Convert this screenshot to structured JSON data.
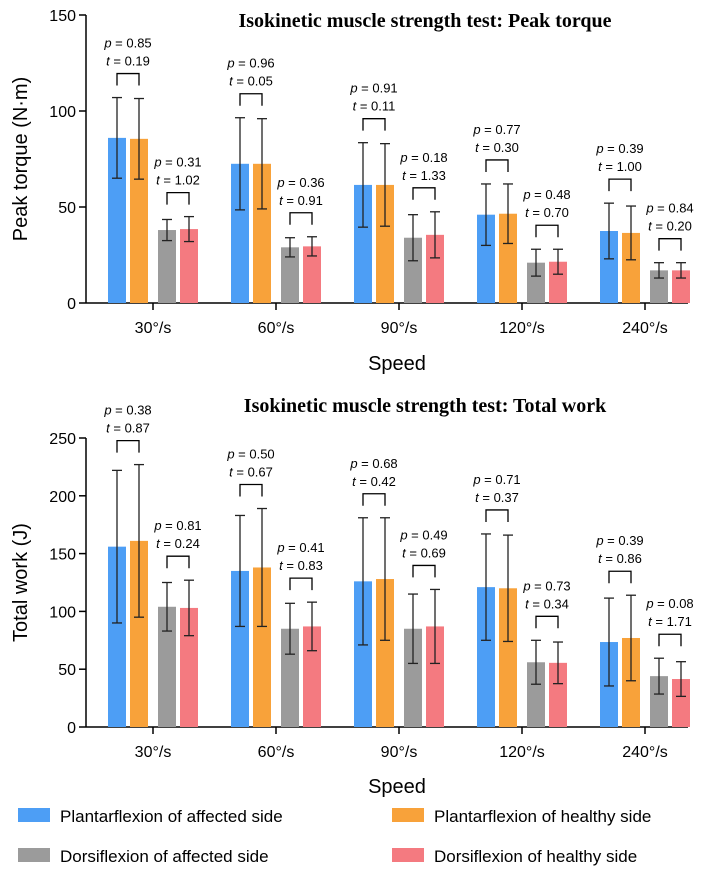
{
  "colors": {
    "plantar_affected": "#4d9ef5",
    "plantar_healthy": "#f8a23a",
    "dorsi_affected": "#9b9b9b",
    "dorsi_healthy": "#f47a80",
    "axis": "#000000"
  },
  "legend": [
    {
      "label": "Plantarflexion of affected side",
      "color": "#4d9ef5"
    },
    {
      "label": "Plantarflexion of healthy side",
      "color": "#f8a23a"
    },
    {
      "label": "Dorsiflexion of affected side",
      "color": "#9b9b9b"
    },
    {
      "label": "Dorsiflexion of healthy side",
      "color": "#f47a80"
    }
  ],
  "chart_data": [
    {
      "type": "bar",
      "title": "Isokinetic muscle strength test: Peak torque",
      "xlabel": "Speed",
      "ylabel": "Peak torque (N·m)",
      "ylim": [
        0,
        150
      ],
      "yticks": [
        0,
        50,
        100,
        150
      ],
      "categories": [
        "30°/s",
        "60°/s",
        "90°/s",
        "120°/s",
        "240°/s"
      ],
      "series": [
        {
          "name": "Plantarflexion of affected side",
          "values": [
            86,
            72.5,
            61.5,
            46,
            37.5
          ],
          "sd": [
            21,
            24,
            22,
            16,
            14.5
          ]
        },
        {
          "name": "Plantarflexion of healthy side",
          "values": [
            85.5,
            72.5,
            61.5,
            46.5,
            36.5
          ],
          "sd": [
            21,
            23.5,
            21.5,
            15.5,
            14
          ]
        },
        {
          "name": "Dorsiflexion of affected side",
          "values": [
            38,
            29,
            34,
            21,
            17
          ],
          "sd": [
            5.5,
            5,
            12,
            7,
            4
          ]
        },
        {
          "name": "Dorsiflexion of healthy side",
          "values": [
            38.5,
            29.5,
            35.5,
            21.5,
            17
          ],
          "sd": [
            6.5,
            5,
            12,
            6.5,
            4
          ]
        }
      ],
      "stats": {
        "plantar": [
          {
            "p": "0.85",
            "t": "0.19"
          },
          {
            "p": "0.96",
            "t": "0.05"
          },
          {
            "p": "0.91",
            "t": "0.11"
          },
          {
            "p": "0.77",
            "t": "0.30"
          },
          {
            "p": "0.39",
            "t": "1.00"
          }
        ],
        "dorsi": [
          {
            "p": "0.31",
            "t": "1.02"
          },
          {
            "p": "0.36",
            "t": "0.91"
          },
          {
            "p": "0.18",
            "t": "1.33"
          },
          {
            "p": "0.48",
            "t": "0.70"
          },
          {
            "p": "0.84",
            "t": "0.20"
          }
        ]
      }
    },
    {
      "type": "bar",
      "title": "Isokinetic muscle strength test: Total work",
      "xlabel": "Speed",
      "ylabel": "Total work (J)",
      "ylim": [
        0,
        250
      ],
      "yticks": [
        0,
        50,
        100,
        150,
        200,
        250
      ],
      "categories": [
        "30°/s",
        "60°/s",
        "90°/s",
        "120°/s",
        "240°/s"
      ],
      "series": [
        {
          "name": "Plantarflexion of affected side",
          "values": [
            156,
            135,
            126,
            121,
            73.5
          ],
          "sd": [
            66,
            48,
            55,
            46,
            38
          ]
        },
        {
          "name": "Plantarflexion of healthy side",
          "values": [
            161,
            138,
            128,
            120,
            77
          ],
          "sd": [
            66,
            51,
            53,
            46,
            37
          ]
        },
        {
          "name": "Dorsiflexion of affected side",
          "values": [
            104,
            85,
            85,
            56,
            44
          ],
          "sd": [
            21,
            22,
            30,
            19,
            15.5
          ]
        },
        {
          "name": "Dorsiflexion of healthy side",
          "values": [
            103,
            87,
            87,
            55.5,
            41.5
          ],
          "sd": [
            24,
            21,
            32,
            18,
            15
          ]
        }
      ],
      "stats": {
        "plantar": [
          {
            "p": "0.38",
            "t": "0.87"
          },
          {
            "p": "0.50",
            "t": "0.67"
          },
          {
            "p": "0.68",
            "t": "0.42"
          },
          {
            "p": "0.71",
            "t": "0.37"
          },
          {
            "p": "0.39",
            "t": "0.86"
          }
        ],
        "dorsi": [
          {
            "p": "0.81",
            "t": "0.24"
          },
          {
            "p": "0.41",
            "t": "0.83"
          },
          {
            "p": "0.49",
            "t": "0.69"
          },
          {
            "p": "0.73",
            "t": "0.34"
          },
          {
            "p": "0.08",
            "t": "1.71"
          }
        ]
      }
    }
  ]
}
